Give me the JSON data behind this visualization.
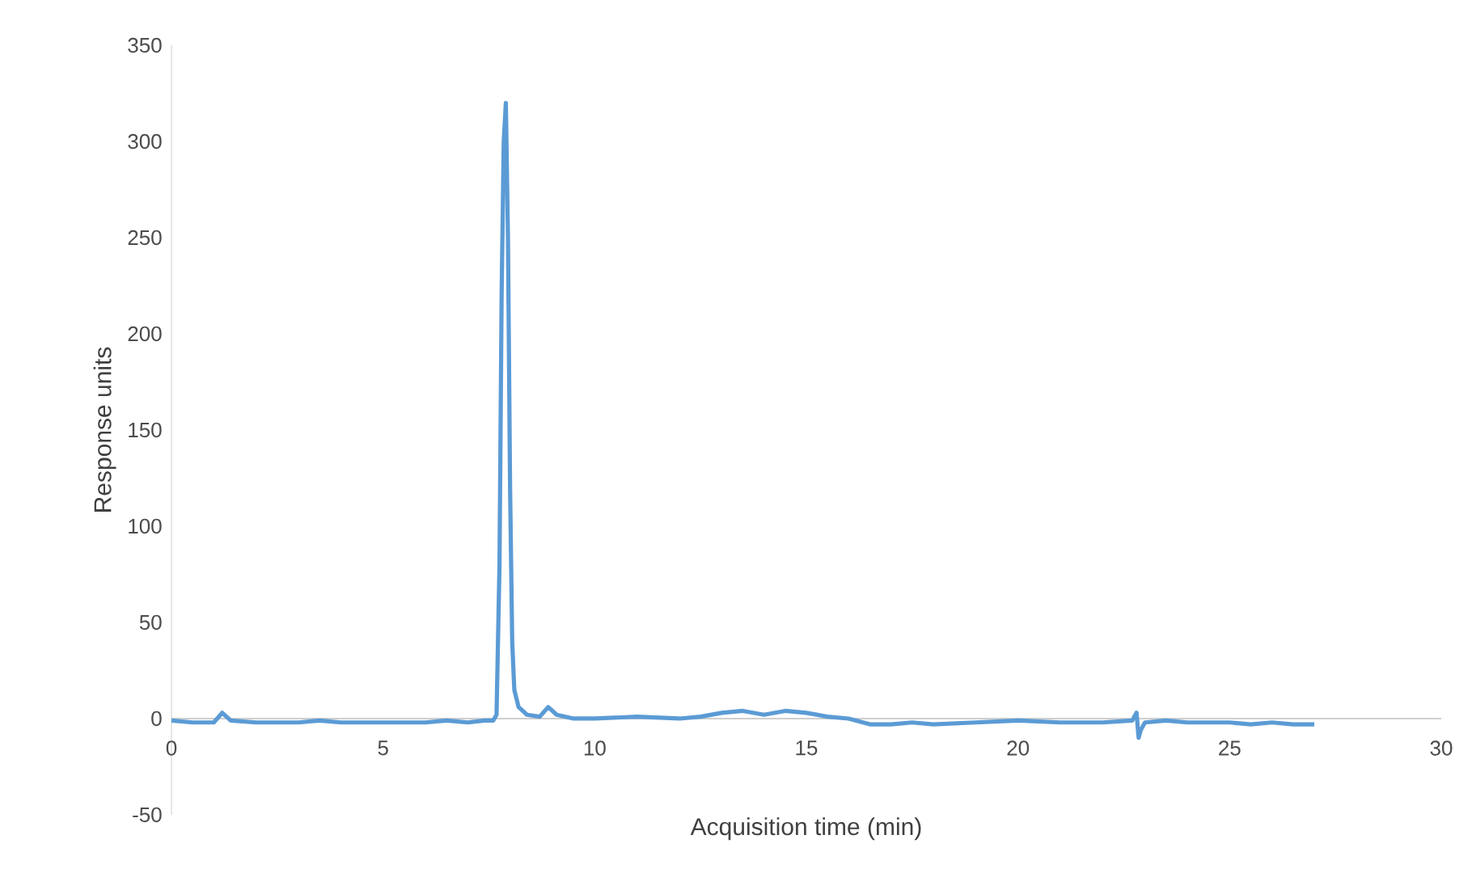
{
  "chart_data": {
    "type": "line",
    "xlabel": "Acquisition time (min)",
    "ylabel": "Response units",
    "x": [
      0,
      0.5,
      1.0,
      1.2,
      1.4,
      2,
      3,
      3.5,
      4,
      5,
      6,
      6.5,
      7,
      7.4,
      7.6,
      7.68,
      7.75,
      7.8,
      7.85,
      7.9,
      7.95,
      8.0,
      8.05,
      8.1,
      8.2,
      8.4,
      8.7,
      8.9,
      9.1,
      9.5,
      10,
      11,
      12,
      12.5,
      13,
      13.5,
      14,
      14.5,
      15,
      15.5,
      16,
      16.5,
      17,
      17.5,
      18,
      19,
      20,
      21,
      22,
      22.7,
      22.8,
      22.85,
      22.9,
      23,
      23.5,
      24,
      25,
      25.5,
      26,
      26.5,
      27
    ],
    "series": [
      {
        "color": "#5b9bd5",
        "values": [
          -1,
          -2,
          -2,
          3,
          -1,
          -2,
          -2,
          -1,
          -2,
          -2,
          -2,
          -1,
          -2,
          -1,
          -1,
          2,
          80,
          220,
          300,
          320,
          250,
          120,
          40,
          15,
          6,
          2,
          1,
          6,
          2,
          0,
          0,
          1,
          0,
          1,
          3,
          4,
          2,
          4,
          3,
          1,
          0,
          -3,
          -3,
          -2,
          -3,
          -2,
          -1,
          -2,
          -2,
          -1,
          3,
          -10,
          -6,
          -2,
          -1,
          -2,
          -2,
          -3,
          -2,
          -3,
          -3
        ]
      }
    ],
    "xlim": [
      0,
      30
    ],
    "ylim": [
      -50,
      350
    ],
    "xticks": [
      0,
      5,
      10,
      15,
      20,
      25,
      30
    ],
    "yticks": [
      -50,
      0,
      50,
      100,
      150,
      200,
      250,
      300,
      350
    ],
    "grid": false,
    "line_style": "solid",
    "marker": "none"
  }
}
